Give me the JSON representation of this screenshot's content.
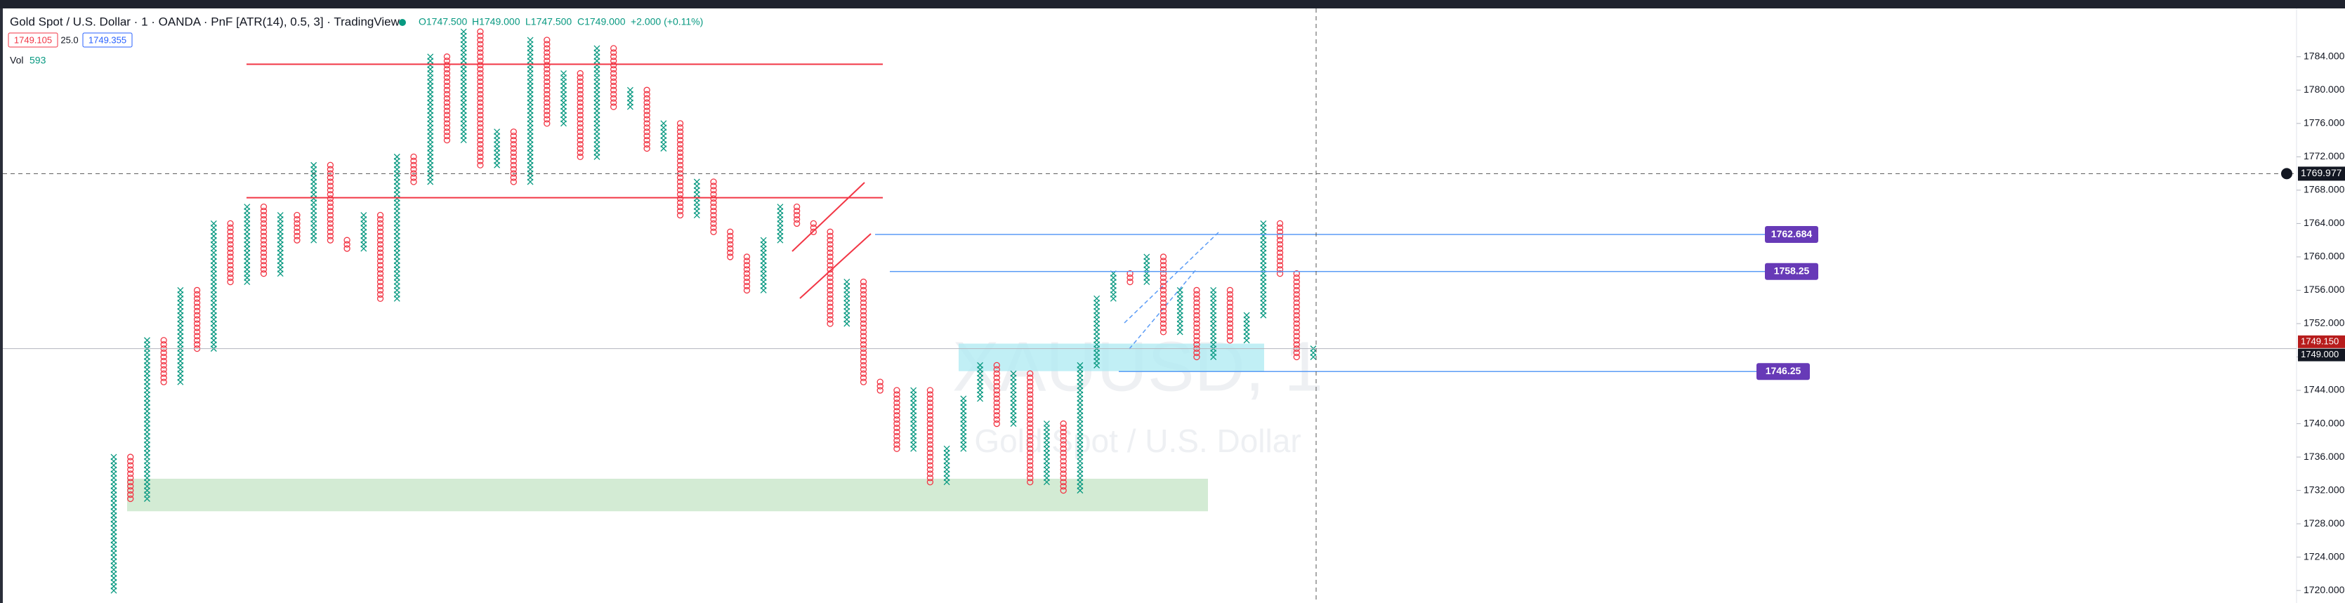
{
  "chart_data": {
    "type": "pnf",
    "title": "Gold Spot / U.S. Dollar · 1 · OANDA · PnF [ATR(14), 0.5, 3] · TradingView",
    "ohlc": [
      "O1747.500",
      "H1749.000",
      "L1747.500",
      "C1749.000",
      "+2.000 (+0.11%)"
    ],
    "bid": "1749.105",
    "spread": "25.0",
    "ask": "1749.355",
    "volume_label": "Vol",
    "volume": "593",
    "watermark": [
      "XAUUSD, 1",
      "Gold Spot / U.S. Dollar"
    ],
    "ylim": [
      1718.5,
      1790.8
    ],
    "yticks": [
      {
        "value": 1720,
        "label": "1720.000"
      },
      {
        "value": 1724,
        "label": "1724.000"
      },
      {
        "value": 1728,
        "label": "1728.000"
      },
      {
        "value": 1732,
        "label": "1732.000"
      },
      {
        "value": 1736,
        "label": "1736.000"
      },
      {
        "value": 1740,
        "label": "1740.000"
      },
      {
        "value": 1744,
        "label": "1744.000"
      },
      {
        "value": 1748,
        "label": "1748.000"
      },
      {
        "value": 1752,
        "label": "1752.000"
      },
      {
        "value": 1756,
        "label": "1756.000"
      },
      {
        "value": 1760,
        "label": "1760.000"
      },
      {
        "value": 1764,
        "label": "1764.000"
      },
      {
        "value": 1768,
        "label": "1768.000"
      },
      {
        "value": 1772,
        "label": "1772.000"
      },
      {
        "value": 1776,
        "label": "1776.000"
      },
      {
        "value": 1780,
        "label": "1780.000"
      },
      {
        "value": 1784,
        "label": "1784.000"
      }
    ],
    "up_color": "#089981",
    "down_color": "#f23645",
    "values": [
      1720,
      1736,
      1731,
      1750,
      1745,
      1756,
      1749,
      1764,
      1757,
      1766,
      1758,
      1765,
      1762,
      1771,
      1762,
      1761,
      1765,
      1755,
      1772,
      1769,
      1784,
      1774,
      1787,
      1771,
      1775,
      1769,
      1786,
      1776,
      1782,
      1772,
      1785,
      1778,
      1780,
      1773,
      1776,
      1765,
      1769,
      1763,
      1760,
      1756,
      1762,
      1766,
      1764,
      1763,
      1752,
      1757,
      1745,
      1744,
      1737,
      1744,
      1733,
      1737,
      1743,
      1747,
      1740,
      1746,
      1733,
      1740,
      1732,
      1747,
      1755,
      1758,
      1757,
      1760,
      1751,
      1756,
      1748,
      1756,
      1750,
      1753,
      1764,
      1758,
      1748,
      1749
    ],
    "red_lines": [
      {
        "price": 1783.1,
        "color": "#f23645"
      },
      {
        "price": 1767.1,
        "color": "#f23645"
      }
    ],
    "levels": [
      {
        "price": 1762.684,
        "color": "#5b9cf6",
        "label_color": "#673ab7"
      },
      {
        "price": 1758.25,
        "color": "#5b9cf6",
        "label_color": "#673ab7"
      },
      {
        "price": 1746.25,
        "color": "#5b9cf6",
        "label_color": "#673ab7"
      }
    ],
    "zones": [
      {
        "from": 1733.4,
        "to": 1729.5,
        "color": "#c8e6c9"
      },
      {
        "from": 1749.6,
        "to": 1746.3,
        "color": "#b2ebf2"
      }
    ],
    "crosshair": {
      "price": 1769.977,
      "label": "1769.977"
    },
    "last_prices": [
      {
        "value": 1749.15,
        "label": "1749.150",
        "color": "#b71c1c"
      },
      {
        "value": 1749,
        "label": "1749.000",
        "color": "#131722"
      }
    ]
  }
}
